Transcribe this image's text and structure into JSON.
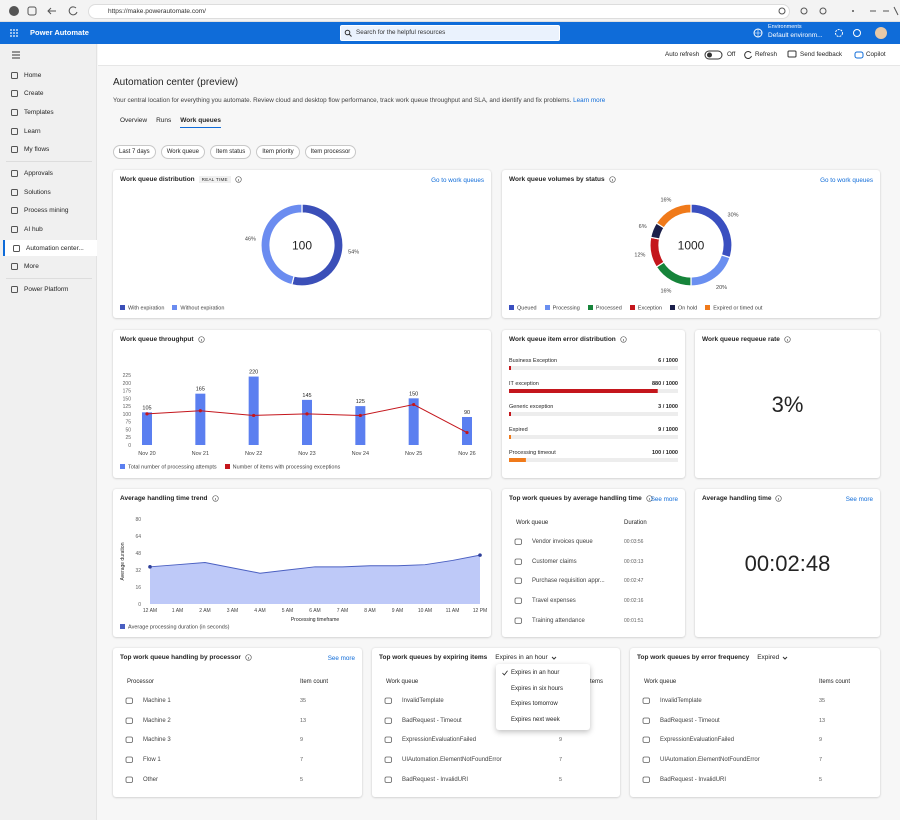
{
  "browser": {
    "url": "https://make.powerautomate.com/"
  },
  "header": {
    "app_name": "Power Automate",
    "search_placeholder": "Search for the helpful resources",
    "environment_label": "Environments",
    "environment_name": "Default environm..."
  },
  "nav": {
    "items": [
      "Home",
      "Create",
      "Templates",
      "Learn",
      "My flows",
      "Approvals",
      "Solutions",
      "Process mining",
      "AI hub",
      "Automation center...",
      "More",
      "Power Platform"
    ],
    "selected": 9
  },
  "toolbar": {
    "auto_refresh": "Auto refresh",
    "toggle_state": "Off",
    "refresh": "Refresh",
    "send_feedback": "Send feedback",
    "copilot": "Copilot"
  },
  "page": {
    "title": "Automation center (preview)",
    "description": "Your central location for everything you automate. Review cloud and desktop flow performance, track work queue throughput and SLA, and identify and fix problems.",
    "learn_more": "Learn more",
    "tabs": [
      "Overview",
      "Runs",
      "Work queues"
    ],
    "selected_tab": 2,
    "filters": [
      "Last 7 days",
      "Work queue",
      "Item status",
      "Item priority",
      "Item processor"
    ]
  },
  "cards": {
    "distribution": {
      "title": "Work queue distribution",
      "badge": "REAL TIME",
      "link": "Go to work queues",
      "chart": {
        "type": "donut",
        "total": 100,
        "categories": [
          "With expiration",
          "Without expiration"
        ],
        "values": [
          54,
          46
        ],
        "value_labels": [
          "54%",
          "46%"
        ],
        "colors": [
          "#3b4fb8",
          "#6b8cf0"
        ]
      }
    },
    "volumes": {
      "title": "Work queue volumes by status",
      "link": "Go to work queues",
      "chart": {
        "type": "donut",
        "total": 1000,
        "categories": [
          "Queued",
          "Processing",
          "Processed",
          "Exception",
          "On hold",
          "Expired or timed out"
        ],
        "values": [
          30,
          20,
          16,
          12,
          6,
          16
        ],
        "value_labels": [
          "30%",
          "20%",
          "16%",
          "12%",
          "6%",
          "16%"
        ],
        "colors": [
          "#3a4fc0",
          "#6a8ff0",
          "#16843a",
          "#c4161c",
          "#1b1f4a",
          "#f07a1a"
        ]
      }
    },
    "throughput": {
      "title": "Work queue throughput",
      "chart": {
        "type": "bar-line",
        "categories": [
          "Nov 20",
          "Nov 21",
          "Nov 22",
          "Nov 23",
          "Nov 24",
          "Nov 25",
          "Nov 26"
        ],
        "series": [
          {
            "name": "Total number of processing attempts",
            "color": "#5b7ff0",
            "type": "bar",
            "values": [
              105,
              165,
              220,
              145,
              125,
              150,
              90
            ]
          },
          {
            "name": "Number of items with processing exceptions",
            "color": "#c4161c",
            "type": "line",
            "values": [
              100,
              110,
              95,
              100,
              95,
              130,
              40
            ]
          }
        ],
        "ylim": [
          0,
          225
        ],
        "yticks": [
          0,
          25,
          50,
          75,
          100,
          125,
          150,
          175,
          200,
          225
        ]
      }
    },
    "error_distribution": {
      "title": "Work queue item error distribution",
      "chart": {
        "type": "progress",
        "xlim": [
          0,
          1000
        ],
        "categories": [
          "Business Exception",
          "IT exception",
          "Generic exception",
          "Expired",
          "Processing timeout"
        ],
        "values": [
          6,
          880,
          3,
          9,
          100
        ],
        "value_labels": [
          "6 / 1000",
          "880 / 1000",
          "3 / 1000",
          "9 / 1000",
          "100 / 1000"
        ],
        "colors": [
          "#c4161c",
          "#c4161c",
          "#c4161c",
          "#f07a1a",
          "#f07a1a"
        ]
      }
    },
    "requeue_rate": {
      "title": "Work queue requeue rate",
      "value": "3%"
    },
    "handling_trend": {
      "title": "Average handling time trend",
      "chart": {
        "type": "area",
        "x_label": "Processing timeframe",
        "y_label": "Average duration",
        "categories": [
          "12 AM",
          "1 AM",
          "2 AM",
          "3 AM",
          "4 AM",
          "5 AM",
          "6 AM",
          "7 AM",
          "8 AM",
          "9 AM",
          "10 AM",
          "11 AM",
          "12 PM"
        ],
        "series": [
          {
            "name": "Average processing duration (in seconds)",
            "color": "#4a5fc1",
            "values": [
              35,
              37,
              39,
              34,
              29,
              32,
              35,
              35,
              36,
              36,
              37,
              41,
              46
            ]
          }
        ],
        "ylim": [
          0,
          80
        ],
        "yticks": [
          0,
          16,
          32,
          48,
          64,
          80
        ]
      }
    },
    "top_by_handling_time": {
      "title": "Top work queues by average handling time",
      "link": "See more",
      "table": {
        "columns": [
          "Work queue",
          "Duration"
        ],
        "rows": [
          [
            "Vendor invoices queue",
            "00:03:56"
          ],
          [
            "Customer claims",
            "00:03:13"
          ],
          [
            "Purchase requisition appr...",
            "00:02:47"
          ],
          [
            "Travel expenses",
            "00:02:16"
          ],
          [
            "Training attendance",
            "00:01:51"
          ]
        ]
      }
    },
    "avg_handling_time": {
      "title": "Average handling time",
      "link": "See more",
      "value": "00:02:48"
    },
    "by_processor": {
      "title": "Top work queue handling by processor",
      "link": "See more",
      "table": {
        "columns": [
          "Processor",
          "Item count"
        ],
        "rows": [
          [
            "Machine 1",
            35
          ],
          [
            "Machine 2",
            13
          ],
          [
            "Machine 3",
            9
          ],
          [
            "Flow 1",
            7
          ],
          [
            "Other",
            5
          ]
        ]
      }
    },
    "by_expiring": {
      "title": "Top work queues by expiring items",
      "dropdown": "Expires in an hour",
      "table": {
        "columns": [
          "Work queue",
          "Number of items"
        ],
        "rows": [
          [
            "InvalidTemplate",
            null
          ],
          [
            "BadRequest - Timeout",
            null
          ],
          [
            "ExpressionEvaluationFailed",
            9
          ],
          [
            "UIAutomation.ElementNotFoundError",
            7
          ],
          [
            "BadRequest - InvalidURI",
            5
          ]
        ]
      },
      "menu": {
        "options": [
          "Expires in an hour",
          "Expires in six hours",
          "Expires tomorrow",
          "Expires next week"
        ],
        "selected": 0
      }
    },
    "by_error_frequency": {
      "title": "Top work queues by error frequency",
      "dropdown": "Expired",
      "table": {
        "columns": [
          "Work queue",
          "Items count"
        ],
        "rows": [
          [
            "InvalidTemplate",
            35
          ],
          [
            "BadRequest - Timeout",
            13
          ],
          [
            "ExpressionEvaluationFailed",
            9
          ],
          [
            "UIAutomation.ElementNotFoundError",
            7
          ],
          [
            "BadRequest - InvalidURI",
            5
          ]
        ]
      }
    }
  }
}
